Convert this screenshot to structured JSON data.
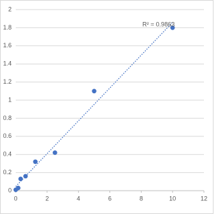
{
  "chart_data": {
    "type": "scatter",
    "annotation": "R² = 0.9863",
    "x": [
      0,
      0.156,
      0.312,
      0.625,
      1.25,
      2.5,
      5,
      10
    ],
    "series": [
      {
        "color": "#4472c4",
        "values": [
          0.01,
          0.03,
          0.13,
          0.16,
          0.32,
          0.42,
          1.1,
          1.8
        ]
      }
    ],
    "trendline": true,
    "xlim": [
      0,
      12
    ],
    "xticks": [
      0,
      2,
      4,
      6,
      8,
      10,
      12
    ],
    "ylim": [
      0,
      2
    ],
    "yticks": [
      0,
      0.2,
      0.4,
      0.6,
      0.8,
      1,
      1.2,
      1.4,
      1.6,
      1.8,
      2
    ],
    "grid": true
  }
}
